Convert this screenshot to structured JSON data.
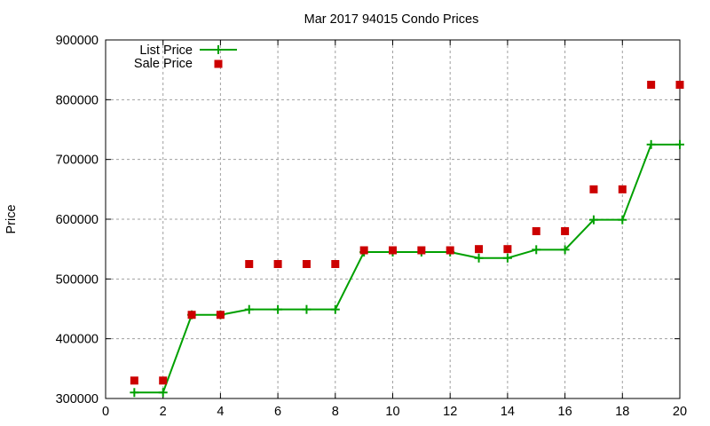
{
  "chart_data": {
    "type": "line",
    "title": "Mar 2017 94015 Condo Prices",
    "xlabel": "",
    "ylabel": "Price",
    "xlim": [
      0,
      20
    ],
    "ylim": [
      300000,
      900000
    ],
    "x_ticks": [
      0,
      2,
      4,
      6,
      8,
      10,
      12,
      14,
      16,
      18,
      20
    ],
    "y_ticks": [
      300000,
      400000,
      500000,
      600000,
      700000,
      800000,
      900000
    ],
    "grid": true,
    "legend_position": "top-left",
    "x": [
      1,
      2,
      3,
      4,
      5,
      6,
      7,
      8,
      9,
      10,
      11,
      12,
      13,
      14,
      15,
      16,
      17,
      18,
      19,
      20
    ],
    "series": [
      {
        "name": "List Price",
        "style": "linespoints",
        "marker": "plus",
        "color": "#00a000",
        "values": [
          310000,
          310000,
          440000,
          440000,
          449000,
          449000,
          449000,
          449000,
          545000,
          545000,
          545000,
          545000,
          535000,
          535000,
          549000,
          549000,
          599000,
          599000,
          725000,
          725000
        ]
      },
      {
        "name": "Sale Price",
        "style": "points",
        "marker": "square",
        "color": "#cc0000",
        "values": [
          330000,
          330000,
          440000,
          440000,
          525000,
          525000,
          525000,
          525000,
          548000,
          548000,
          548000,
          548000,
          550000,
          550000,
          580000,
          580000,
          650000,
          650000,
          825000,
          825000
        ]
      }
    ]
  }
}
